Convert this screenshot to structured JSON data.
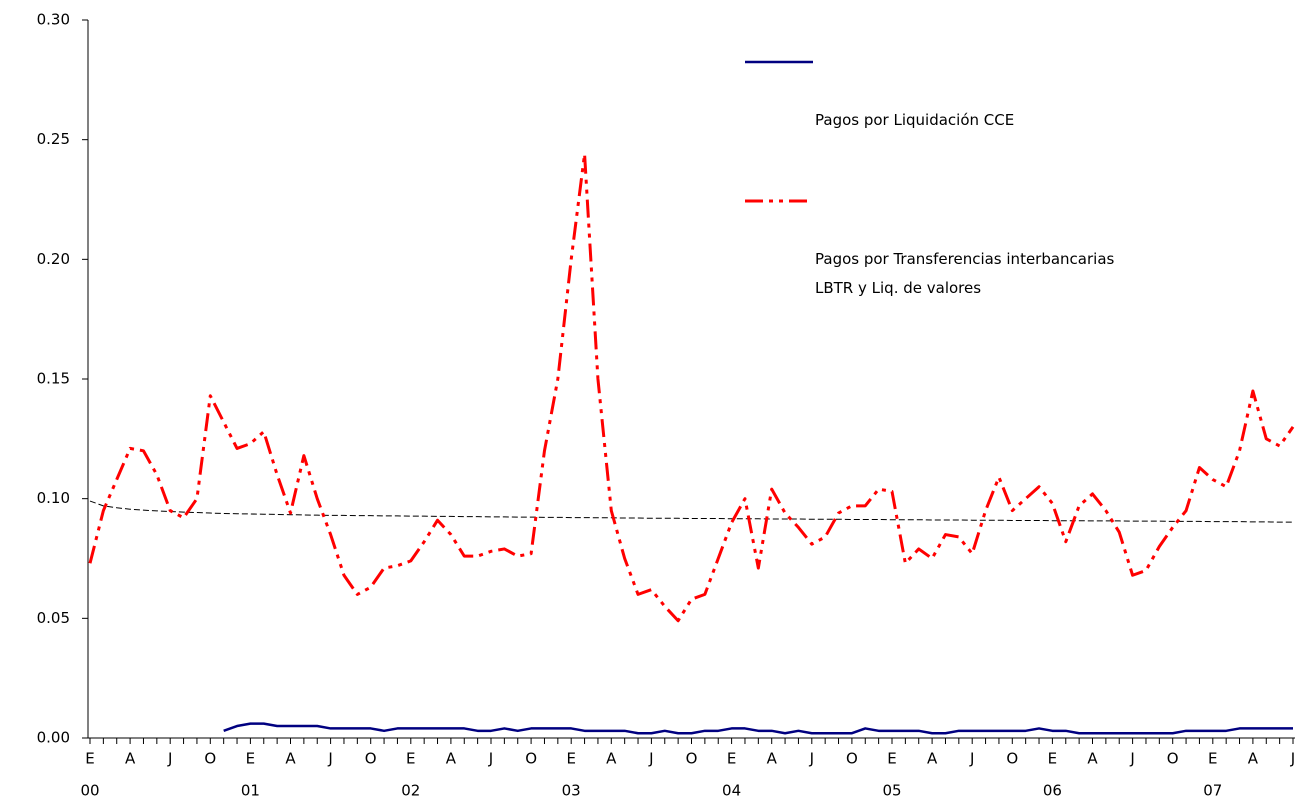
{
  "chart_data": {
    "type": "line",
    "categories": [
      "E",
      null,
      null,
      "A",
      null,
      null,
      "J",
      null,
      null,
      "O",
      null,
      null,
      "E",
      null,
      null,
      "A",
      null,
      null,
      "J",
      null,
      null,
      "O",
      null,
      null,
      "E",
      null,
      null,
      "A",
      null,
      null,
      "J",
      null,
      null,
      "O",
      null,
      null,
      "E",
      null,
      null,
      "A",
      null,
      null,
      "J",
      null,
      null,
      "O",
      null,
      null,
      "E",
      null,
      null,
      "A",
      null,
      null,
      "J",
      null,
      null,
      "O",
      null,
      null,
      "E",
      null,
      null,
      "A",
      null,
      null,
      "J",
      null,
      null,
      "O",
      null,
      null,
      "E",
      null,
      null,
      "A",
      null,
      null,
      "J",
      null,
      null,
      "O",
      null,
      null,
      "E",
      null,
      null,
      "A",
      null,
      null,
      "J"
    ],
    "year_labels": [
      "00",
      "01",
      "02",
      "03",
      "04",
      "05",
      "06",
      "07"
    ],
    "ylim": [
      0,
      0.3
    ],
    "yticks": [
      {
        "value": 0,
        "label": "0.00"
      },
      {
        "value": 0.05,
        "label": "0.05"
      },
      {
        "value": 0.1,
        "label": "0.10"
      },
      {
        "value": 0.15,
        "label": "0.15"
      },
      {
        "value": 0.2,
        "label": "0.20"
      },
      {
        "value": 0.25,
        "label": "0.25"
      },
      {
        "value": 0.3,
        "label": "0.30"
      }
    ],
    "legend": "top-right",
    "series": [
      {
        "name": "Pagos por Liquidación CCE",
        "color": "#000080",
        "style": "solid",
        "values": [
          null,
          null,
          null,
          null,
          null,
          null,
          null,
          null,
          null,
          null,
          0.003,
          0.005,
          0.006,
          0.006,
          0.005,
          0.005,
          0.005,
          0.005,
          0.004,
          0.004,
          0.004,
          0.004,
          0.003,
          0.004,
          0.004,
          0.004,
          0.004,
          0.004,
          0.004,
          0.003,
          0.003,
          0.004,
          0.003,
          0.004,
          0.004,
          0.004,
          0.004,
          0.003,
          0.003,
          0.003,
          0.003,
          0.002,
          0.002,
          0.003,
          0.002,
          0.002,
          0.003,
          0.003,
          0.004,
          0.004,
          0.003,
          0.003,
          0.002,
          0.003,
          0.002,
          0.002,
          0.002,
          0.002,
          0.004,
          0.003,
          0.003,
          0.003,
          0.003,
          0.002,
          0.002,
          0.003,
          0.003,
          0.003,
          0.003,
          0.003,
          0.003,
          0.004,
          0.003,
          0.003,
          0.002,
          0.002,
          0.002,
          0.002,
          0.002,
          0.002,
          0.002,
          0.002,
          0.003,
          0.003,
          0.003,
          0.003,
          0.004,
          0.004,
          0.004,
          0.004,
          0.004
        ]
      },
      {
        "name": "Pagos por Transferencias interbancarias\nLBTR y Liq. de valores",
        "color": "#ff0000",
        "style": "dashdotdot",
        "values": [
          0.073,
          0.095,
          0.108,
          0.121,
          0.12,
          0.11,
          0.095,
          0.092,
          0.1,
          0.143,
          0.132,
          0.121,
          0.123,
          0.128,
          0.11,
          0.094,
          0.118,
          0.1,
          0.085,
          0.068,
          0.06,
          0.063,
          0.071,
          0.072,
          0.074,
          0.082,
          0.091,
          0.085,
          0.076,
          0.076,
          0.078,
          0.079,
          0.076,
          0.077,
          0.12,
          0.15,
          0.2,
          0.244,
          0.15,
          0.095,
          0.075,
          0.06,
          0.062,
          0.055,
          0.049,
          0.058,
          0.06,
          0.075,
          0.09,
          0.1,
          0.071,
          0.104,
          0.094,
          0.088,
          0.081,
          0.084,
          0.094,
          0.097,
          0.097,
          0.104,
          0.103,
          0.073,
          0.079,
          0.075,
          0.085,
          0.084,
          0.077,
          0.095,
          0.109,
          0.095,
          0.1,
          0.105,
          0.098,
          0.082,
          0.097,
          0.102,
          0.095,
          0.086,
          0.068,
          0.07,
          0.08,
          0.088,
          0.095,
          0.113,
          0.108,
          0.105,
          0.12,
          0.145,
          0.125,
          0.122,
          0.13
        ]
      },
      {
        "color": "#000000",
        "style": "dashed",
        "values": [
          0.099,
          0.097,
          0.0962,
          0.0956,
          0.0952,
          0.0949,
          0.0946,
          0.0944,
          0.0942,
          0.094,
          0.0938,
          0.0937,
          0.0936,
          0.0935,
          0.0934,
          0.0933,
          0.0932,
          0.0931,
          0.093,
          0.093,
          0.0929,
          0.0929,
          0.0928,
          0.0928,
          0.0927,
          0.0927,
          0.0926,
          0.0926,
          0.0925,
          0.0925,
          0.0924,
          0.0924,
          0.0923,
          0.0923,
          0.0922,
          0.0922,
          0.0921,
          0.0921,
          0.092,
          0.092,
          0.0919,
          0.0919,
          0.0918,
          0.0918,
          0.0918,
          0.0917,
          0.0917,
          0.0917,
          0.0916,
          0.0916,
          0.0916,
          0.0915,
          0.0915,
          0.0915,
          0.0914,
          0.0914,
          0.0914,
          0.0913,
          0.0913,
          0.0913,
          0.0912,
          0.0912,
          0.0912,
          0.0911,
          0.0911,
          0.0911,
          0.091,
          0.091,
          0.091,
          0.0909,
          0.0909,
          0.0909,
          0.0908,
          0.0908,
          0.0908,
          0.0907,
          0.0907,
          0.0907,
          0.0906,
          0.0906,
          0.0906,
          0.0905,
          0.0905,
          0.0905,
          0.0904,
          0.0904,
          0.0904,
          0.0903,
          0.0903,
          0.0902,
          0.0902
        ]
      }
    ]
  }
}
